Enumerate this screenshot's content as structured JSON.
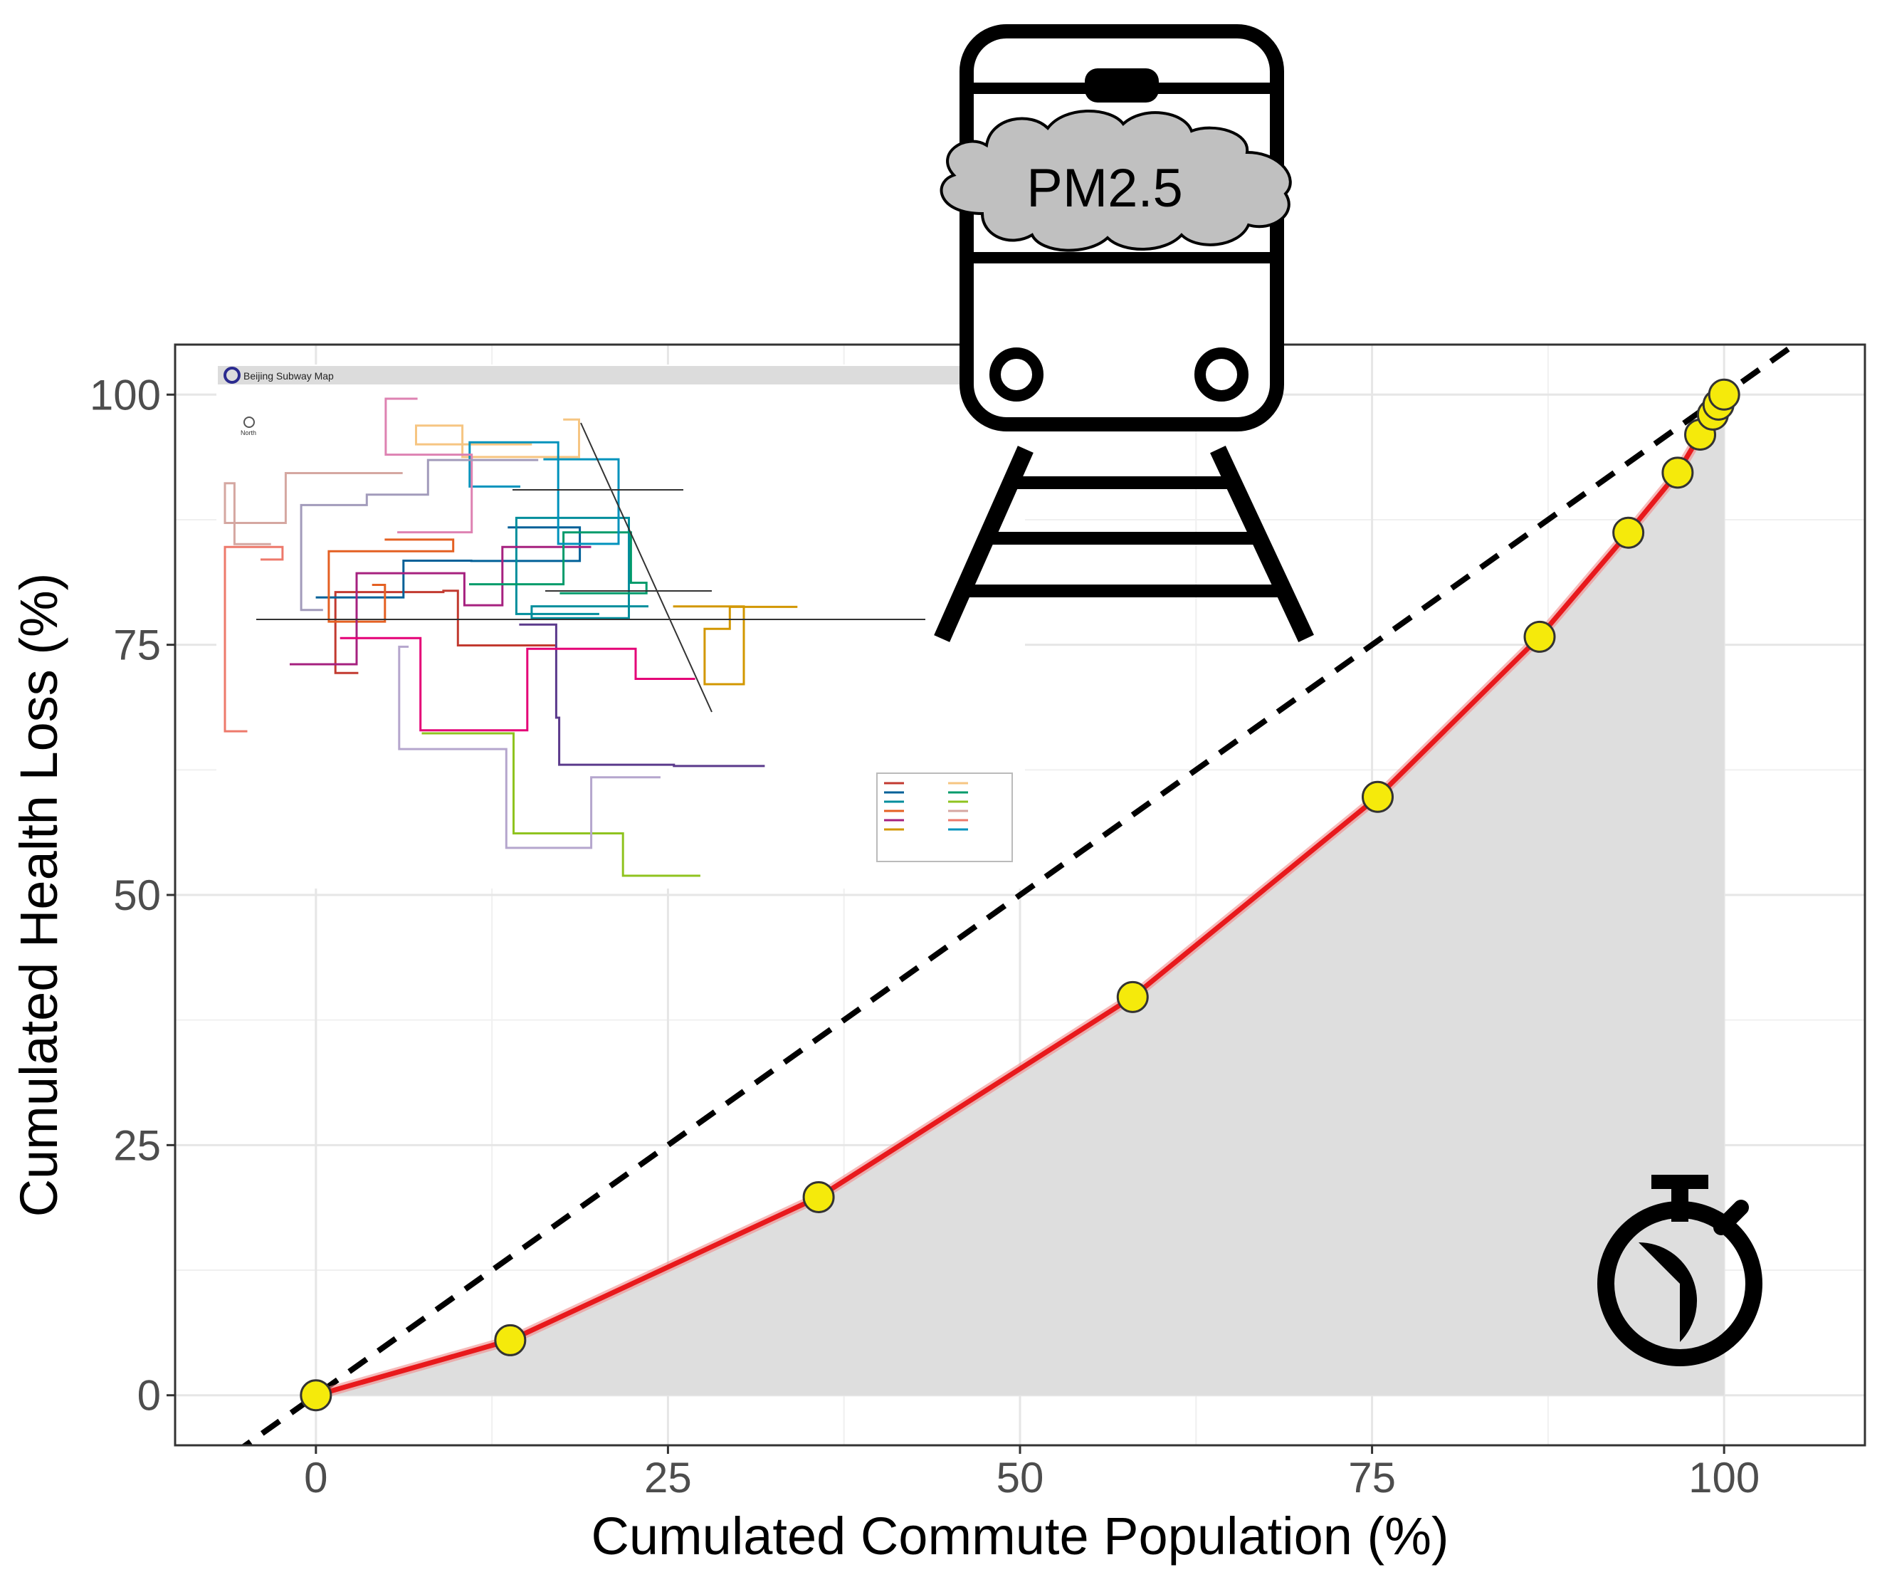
{
  "chart_data": {
    "type": "line",
    "xlabel": "Cumulated Commute Population (%)",
    "ylabel": "Cumulated Health Loss (%)",
    "xlim": [
      -10,
      110
    ],
    "ylim": [
      -5,
      105
    ],
    "x_ticks": [
      0,
      25,
      50,
      75,
      100
    ],
    "y_ticks": [
      0,
      25,
      50,
      75,
      100
    ],
    "grid": true,
    "series": [
      {
        "x": [
          0,
          13.8,
          35.7,
          58,
          75.4,
          86.9,
          93.2,
          96.7,
          98.3,
          99.2,
          99.6,
          100
        ],
        "y": [
          0,
          5.5,
          19.8,
          39.8,
          59.8,
          75.8,
          86.2,
          92.2,
          96,
          98,
          99,
          100
        ],
        "color": "#e8191c",
        "marker_color": "#f5ea0b"
      }
    ],
    "reference_line": {
      "slope": 1,
      "intercept": 0,
      "style": "dashed",
      "color": "#000000"
    },
    "area_fill": "#dedede"
  },
  "icons": {
    "pm_label": "PM2.5",
    "map_title": "Beijing Subway Map",
    "map_north": "North",
    "train_icon": "train-icon",
    "stopwatch_icon": "stopwatch-icon",
    "cloud_color": "#c0c0c0",
    "map_line_colors": [
      "#c23a30",
      "#006098",
      "#008e9c",
      "#e46022",
      "#a6217f",
      "#d29700",
      "#f6c582",
      "#009b6b",
      "#8fc31f",
      "#d5a7a1",
      "#ed796b",
      "#0092bc",
      "#b5a6cd",
      "#5b3a8c",
      "#de82b2",
      "#a29bbb",
      "#e40077"
    ]
  }
}
